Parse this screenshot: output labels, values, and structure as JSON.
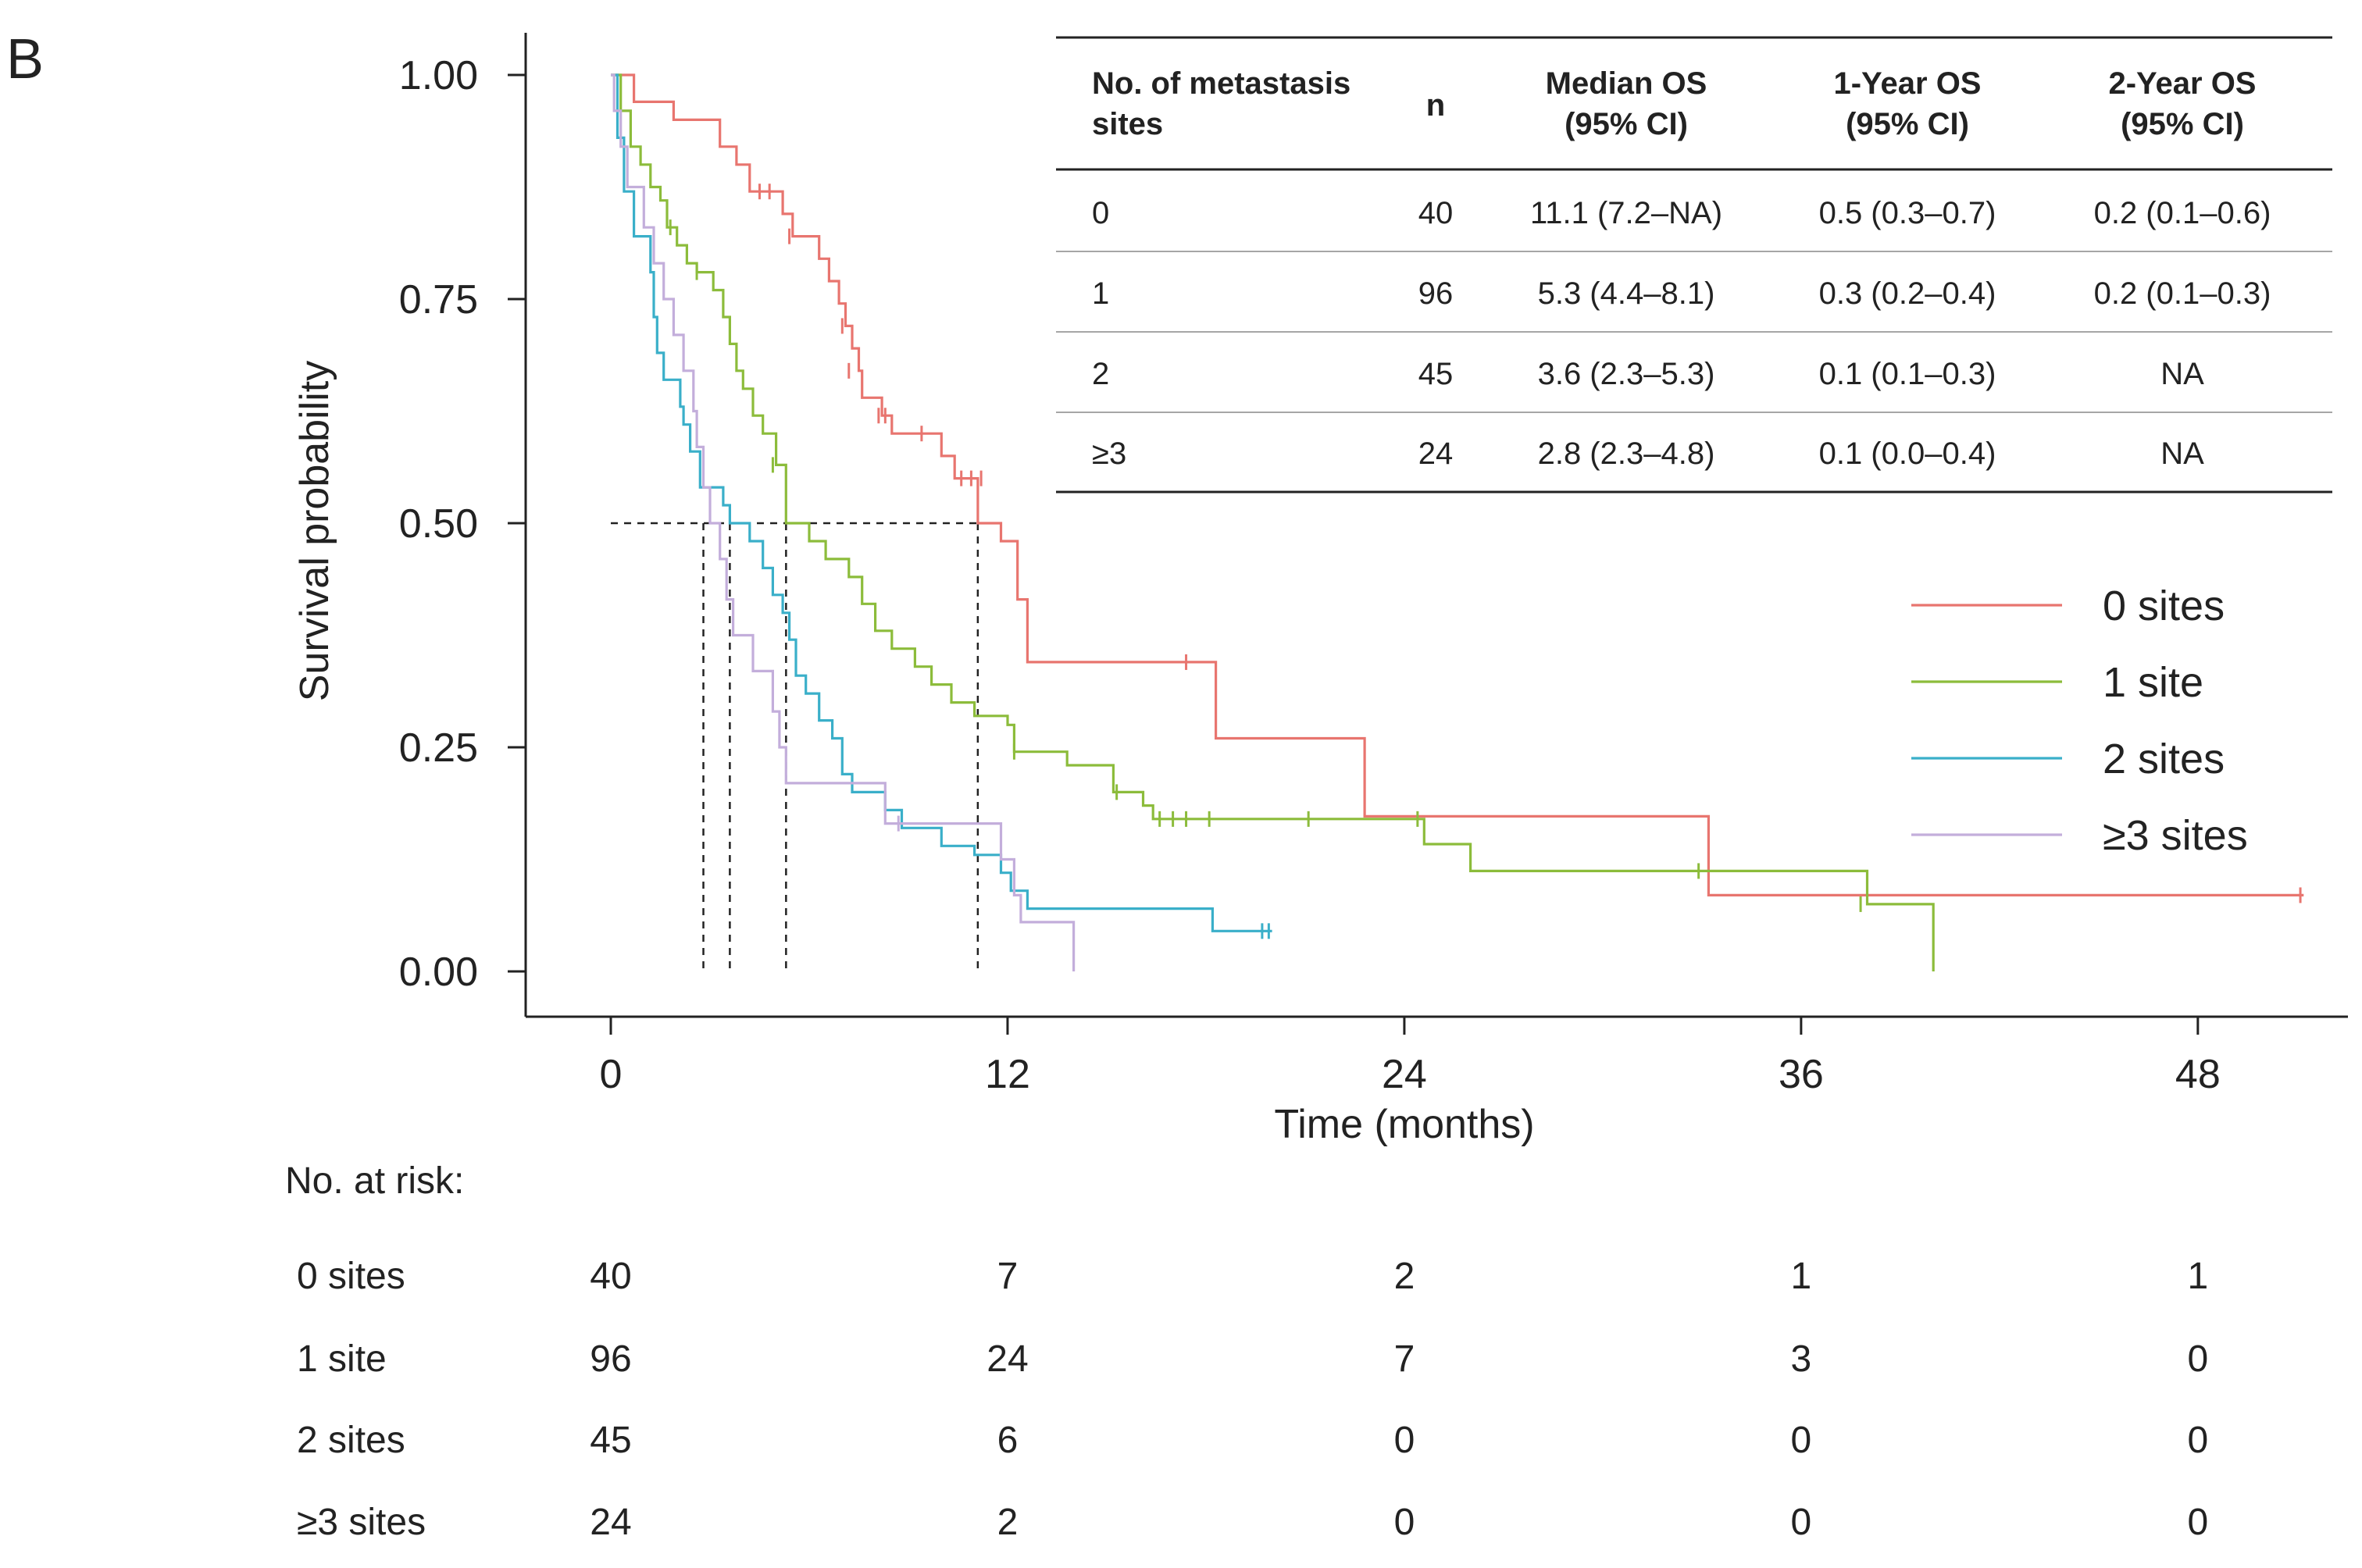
{
  "panel_label": "B",
  "chart_data": {
    "type": "line",
    "subtype": "kaplan-meier",
    "xlabel": "Time (months)",
    "ylabel": "Survival probability",
    "xlim": [
      0,
      52
    ],
    "ylim": [
      0,
      1
    ],
    "x_ticks": [
      0,
      12,
      24,
      36,
      48
    ],
    "x_tick_labels": [
      "0",
      "12",
      "24",
      "36",
      "48"
    ],
    "y_ticks": [
      0,
      0.25,
      0.5,
      0.75,
      1
    ],
    "y_tick_labels": [
      "0.00",
      "0.25",
      "0.50",
      "0.75",
      "1.00"
    ],
    "median_reference": {
      "y": 0.5,
      "x_values": [
        2.8,
        3.6,
        5.3,
        11.1
      ]
    },
    "legend_position": "right",
    "series": [
      {
        "name": "0 sites",
        "color": "#e8756f",
        "steps": [
          [
            0,
            1.0
          ],
          [
            0.7,
            0.97
          ],
          [
            1.9,
            0.95
          ],
          [
            3.3,
            0.92
          ],
          [
            3.8,
            0.9
          ],
          [
            4.2,
            0.87
          ],
          [
            5.2,
            0.845
          ],
          [
            5.5,
            0.82
          ],
          [
            6.3,
            0.795
          ],
          [
            6.6,
            0.77
          ],
          [
            6.9,
            0.745
          ],
          [
            7.1,
            0.72
          ],
          [
            7.3,
            0.695
          ],
          [
            7.5,
            0.67
          ],
          [
            7.6,
            0.64
          ],
          [
            8.2,
            0.62
          ],
          [
            8.5,
            0.6
          ],
          [
            10.0,
            0.575
          ],
          [
            10.4,
            0.55
          ],
          [
            11.1,
            0.5
          ],
          [
            11.8,
            0.48
          ],
          [
            12.3,
            0.415
          ],
          [
            12.6,
            0.345
          ],
          [
            18.3,
            0.26
          ],
          [
            22.8,
            0.173
          ],
          [
            33.2,
            0.085
          ],
          [
            51.2,
            0.085
          ]
        ],
        "censored": [
          [
            4.5,
            0.87
          ],
          [
            4.8,
            0.87
          ],
          [
            5.4,
            0.82
          ],
          [
            7.0,
            0.72
          ],
          [
            7.2,
            0.67
          ],
          [
            8.1,
            0.62
          ],
          [
            8.3,
            0.62
          ],
          [
            9.4,
            0.6
          ],
          [
            10.6,
            0.55
          ],
          [
            10.9,
            0.55
          ],
          [
            11.2,
            0.55
          ],
          [
            17.4,
            0.345
          ],
          [
            51.1,
            0.085
          ]
        ]
      },
      {
        "name": "1 site",
        "color": "#8cbc3b",
        "steps": [
          [
            0,
            1.0
          ],
          [
            0.3,
            0.96
          ],
          [
            0.6,
            0.92
          ],
          [
            0.9,
            0.9
          ],
          [
            1.2,
            0.875
          ],
          [
            1.5,
            0.86
          ],
          [
            1.7,
            0.83
          ],
          [
            2.0,
            0.81
          ],
          [
            2.3,
            0.79
          ],
          [
            2.6,
            0.78
          ],
          [
            3.1,
            0.76
          ],
          [
            3.4,
            0.73
          ],
          [
            3.6,
            0.7
          ],
          [
            3.8,
            0.67
          ],
          [
            4.0,
            0.65
          ],
          [
            4.3,
            0.62
          ],
          [
            4.6,
            0.6
          ],
          [
            5.0,
            0.565
          ],
          [
            5.3,
            0.5
          ],
          [
            6.0,
            0.48
          ],
          [
            6.5,
            0.46
          ],
          [
            7.2,
            0.44
          ],
          [
            7.6,
            0.41
          ],
          [
            8.0,
            0.38
          ],
          [
            8.5,
            0.36
          ],
          [
            9.2,
            0.34
          ],
          [
            9.7,
            0.32
          ],
          [
            10.3,
            0.3
          ],
          [
            11.0,
            0.285
          ],
          [
            12.0,
            0.275
          ],
          [
            12.2,
            0.245
          ],
          [
            13.8,
            0.23
          ],
          [
            15.2,
            0.2
          ],
          [
            16.1,
            0.185
          ],
          [
            16.4,
            0.17
          ],
          [
            24.6,
            0.142
          ],
          [
            26.0,
            0.112
          ],
          [
            38.0,
            0.075
          ],
          [
            40.0,
            0.0
          ]
        ],
        "censored": [
          [
            1.8,
            0.83
          ],
          [
            2.6,
            0.78
          ],
          [
            4.9,
            0.565
          ],
          [
            12.2,
            0.245
          ],
          [
            15.3,
            0.2
          ],
          [
            16.6,
            0.17
          ],
          [
            17.0,
            0.17
          ],
          [
            17.4,
            0.17
          ],
          [
            18.1,
            0.17
          ],
          [
            21.1,
            0.17
          ],
          [
            24.4,
            0.17
          ],
          [
            32.9,
            0.112
          ],
          [
            37.8,
            0.075
          ]
        ]
      },
      {
        "name": "2 sites",
        "color": "#3aafc9",
        "steps": [
          [
            0,
            1.0
          ],
          [
            0.2,
            0.93
          ],
          [
            0.4,
            0.87
          ],
          [
            0.7,
            0.82
          ],
          [
            1.2,
            0.78
          ],
          [
            1.3,
            0.73
          ],
          [
            1.4,
            0.69
          ],
          [
            1.6,
            0.66
          ],
          [
            2.1,
            0.63
          ],
          [
            2.2,
            0.61
          ],
          [
            2.4,
            0.58
          ],
          [
            2.7,
            0.54
          ],
          [
            3.4,
            0.52
          ],
          [
            3.6,
            0.5
          ],
          [
            4.2,
            0.48
          ],
          [
            4.6,
            0.45
          ],
          [
            4.9,
            0.42
          ],
          [
            5.2,
            0.4
          ],
          [
            5.4,
            0.37
          ],
          [
            5.6,
            0.33
          ],
          [
            5.9,
            0.31
          ],
          [
            6.3,
            0.28
          ],
          [
            6.7,
            0.26
          ],
          [
            7.0,
            0.22
          ],
          [
            7.3,
            0.2
          ],
          [
            8.3,
            0.18
          ],
          [
            8.8,
            0.16
          ],
          [
            10.0,
            0.14
          ],
          [
            11.0,
            0.13
          ],
          [
            11.8,
            0.11
          ],
          [
            12.1,
            0.09
          ],
          [
            12.6,
            0.07
          ],
          [
            18.2,
            0.045
          ],
          [
            20.0,
            0.045
          ]
        ],
        "censored": [
          [
            19.7,
            0.045
          ],
          [
            19.9,
            0.045
          ]
        ]
      },
      {
        "name": "≥3 sites",
        "color": "#c3aedb",
        "steps": [
          [
            0,
            1.0
          ],
          [
            0.1,
            0.96
          ],
          [
            0.3,
            0.92
          ],
          [
            0.5,
            0.875
          ],
          [
            1.0,
            0.83
          ],
          [
            1.3,
            0.79
          ],
          [
            1.6,
            0.75
          ],
          [
            1.9,
            0.71
          ],
          [
            2.2,
            0.67
          ],
          [
            2.5,
            0.625
          ],
          [
            2.6,
            0.585
          ],
          [
            2.8,
            0.54
          ],
          [
            3.0,
            0.5
          ],
          [
            3.3,
            0.46
          ],
          [
            3.5,
            0.415
          ],
          [
            3.7,
            0.375
          ],
          [
            4.3,
            0.335
          ],
          [
            4.9,
            0.29
          ],
          [
            5.1,
            0.25
          ],
          [
            5.3,
            0.21
          ],
          [
            8.3,
            0.165
          ],
          [
            11.8,
            0.125
          ],
          [
            12.2,
            0.085
          ],
          [
            12.4,
            0.055
          ],
          [
            14.0,
            0.0
          ]
        ],
        "censored": [
          [
            8.7,
            0.165
          ]
        ]
      }
    ]
  },
  "table": {
    "headers": [
      [
        "No. of metastasis",
        "sites"
      ],
      [
        "n"
      ],
      [
        "Median OS",
        "(95% CI)"
      ],
      [
        "1-Year OS",
        "(95% CI)"
      ],
      [
        "2-Year OS",
        "(95% CI)"
      ]
    ],
    "rows": [
      [
        "0",
        "40",
        "11.1 (7.2–NA)",
        "0.5 (0.3–0.7)",
        "0.2 (0.1–0.6)"
      ],
      [
        "1",
        "96",
        "5.3 (4.4–8.1)",
        "0.3 (0.2–0.4)",
        "0.2 (0.1–0.3)"
      ],
      [
        "2",
        "45",
        "3.6 (2.3–5.3)",
        "0.1 (0.1–0.3)",
        "NA"
      ],
      [
        "≥3",
        "24",
        "2.8 (2.3–4.8)",
        "0.1 (0.0–0.4)",
        "NA"
      ]
    ]
  },
  "risk_table": {
    "title": "No. at risk:",
    "times": [
      0,
      12,
      24,
      36,
      48
    ],
    "rows": [
      {
        "label": "0 sites",
        "values": [
          "40",
          "7",
          "2",
          "1",
          "1"
        ]
      },
      {
        "label": "1 site",
        "values": [
          "96",
          "24",
          "7",
          "3",
          "0"
        ]
      },
      {
        "label": "2 sites",
        "values": [
          "45",
          "6",
          "0",
          "0",
          "0"
        ]
      },
      {
        "label": "≥3 sites",
        "values": [
          "24",
          "2",
          "0",
          "0",
          "0"
        ]
      }
    ]
  }
}
